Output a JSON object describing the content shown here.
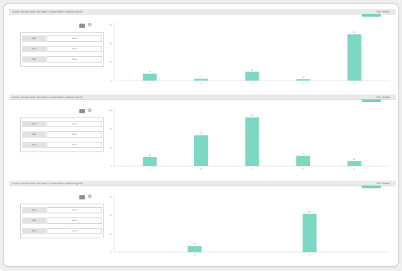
{
  "colors": {
    "bar": "#7bd8c3",
    "legend": "#72d1bd",
    "header": "#e9e9e9"
  },
  "icons": {
    "control_box": "square-icon",
    "control_toggle": "gear-icon"
  },
  "panels": [
    {
      "title": "Lorem ipsum dolor sit amet, consectetur adipiscing elit",
      "action": "See details",
      "filters": [
        {
          "label": "Filter",
          "value": "Value"
        },
        {
          "label": "Filter",
          "value": "Value"
        },
        {
          "label": "Filter",
          "value": "Value"
        }
      ],
      "chart_data": {
        "type": "bar",
        "categories": [
          "A",
          "B",
          "C",
          "D",
          "E"
        ],
        "values": [
          15,
          4,
          19,
          3,
          100
        ],
        "ylim": [
          0,
          120
        ],
        "yticks": [
          0,
          40,
          80,
          120
        ],
        "grid": false,
        "legend": "top-right"
      }
    },
    {
      "title": "Lorem ipsum dolor sit amet, consectetur adipiscing elit",
      "action": "See details",
      "filters": [
        {
          "label": "Filter",
          "value": "Value"
        },
        {
          "label": "Filter",
          "value": "Value"
        },
        {
          "label": "Filter",
          "value": "Value"
        }
      ],
      "chart_data": {
        "type": "bar",
        "categories": [
          "A",
          "B",
          "C",
          "D",
          "E"
        ],
        "values": [
          22,
          75,
          118,
          25,
          12
        ],
        "ylim": [
          0,
          135
        ],
        "yticks": [
          0,
          45,
          90,
          135
        ],
        "grid": false,
        "legend": "top-right"
      }
    },
    {
      "title": "Lorem ipsum dolor sit amet, consectetur adipiscing elit",
      "action": "See details",
      "filters": [
        {
          "label": "Filter",
          "value": "Value"
        },
        {
          "label": "Filter",
          "value": "Value"
        },
        {
          "label": "Filter",
          "value": "Value"
        }
      ],
      "chart_data": {
        "type": "bar",
        "categories": [
          "A",
          "B"
        ],
        "values": [
          10,
          62
        ],
        "ylim": [
          0,
          90
        ],
        "yticks": [
          0,
          30,
          60,
          90
        ],
        "grid": false,
        "legend": "top-right"
      }
    }
  ]
}
